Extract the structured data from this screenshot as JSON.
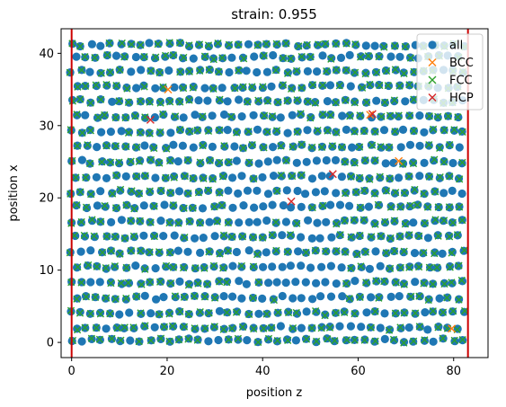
{
  "chart_data": {
    "type": "scatter",
    "title": "strain: 0.955",
    "xlabel": "position z",
    "ylabel": "position x",
    "xlim": [
      -2.2,
      87.2
    ],
    "ylim": [
      -2.1,
      43.4
    ],
    "xticks": [
      0,
      20,
      40,
      60,
      80
    ],
    "yticks": [
      0,
      10,
      20,
      30,
      40
    ],
    "grid": false,
    "legend_position": "top-right",
    "atom_layers_y": [
      0.3,
      2.0,
      4.1,
      6.2,
      8.3,
      10.4,
      12.5,
      14.6,
      16.7,
      18.8,
      20.8,
      22.9,
      25.0,
      27.1,
      29.2,
      31.3,
      33.4,
      35.4,
      37.5,
      39.5,
      41.2
    ],
    "atom_spacing_z": 2.05,
    "z_range": [
      0,
      83
    ],
    "vertical_lines": [
      {
        "x": 0.0,
        "color": "#cc0000"
      },
      {
        "x": 83.0,
        "color": "#cc0000"
      }
    ],
    "series": [
      {
        "name": "all",
        "marker": "circle",
        "color": "#1f77b4",
        "description": "every atom"
      },
      {
        "name": "BCC",
        "marker": "x",
        "color": "#ff7f0e",
        "points": [
          [
            62.5,
            31.5
          ],
          [
            20.2,
            35.0
          ],
          [
            68.5,
            25.1
          ],
          [
            79.6,
            1.9
          ]
        ]
      },
      {
        "name": "FCC",
        "marker": "x",
        "color": "#2ca02c",
        "description": "most atoms"
      },
      {
        "name": "HCP",
        "marker": "x",
        "color": "#d62728",
        "points": [
          [
            46.0,
            19.5
          ],
          [
            54.7,
            23.3
          ],
          [
            16.5,
            30.8
          ],
          [
            63.0,
            31.6
          ]
        ]
      }
    ]
  }
}
